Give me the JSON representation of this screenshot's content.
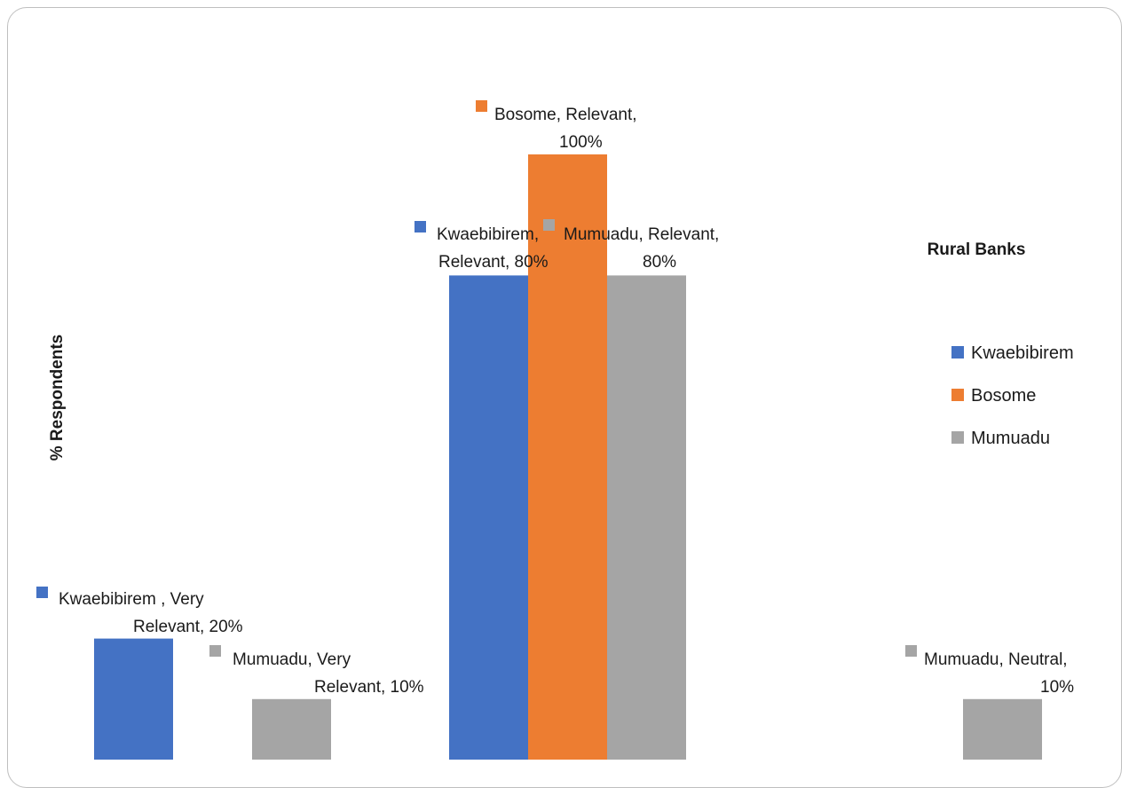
{
  "chart_data": {
    "type": "bar",
    "title": "",
    "xlabel": "",
    "ylabel": "% Respondents",
    "categories": [
      "Very Relevant",
      "Relevant",
      "Neutral"
    ],
    "ylim": [
      0,
      100
    ],
    "grid": false,
    "legend": {
      "title": "Rural Banks",
      "placement": "right"
    },
    "series": [
      {
        "name": "Kwaebibirem",
        "color": "#4472C4",
        "values": [
          20,
          80,
          0
        ],
        "labels": [
          "Kwaebibirem , Very Relevant, 20%",
          "Kwaebibirem, Relevant, 80%",
          ""
        ]
      },
      {
        "name": "Bosome",
        "color": "#ED7D31",
        "values": [
          0,
          100,
          0
        ],
        "labels": [
          "",
          "Bosome, Relevant, 100%",
          ""
        ]
      },
      {
        "name": "Mumuadu",
        "color": "#A5A5A5",
        "values": [
          10,
          80,
          10
        ],
        "labels": [
          "Mumuadu, Very Relevant, 10%",
          "Mumuadu, Relevant, 80%",
          "Mumuadu, Neutral, 10%"
        ]
      }
    ]
  }
}
